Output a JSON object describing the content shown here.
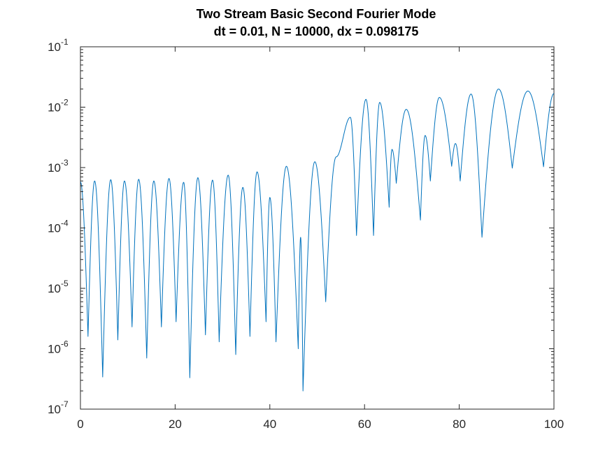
{
  "chart_data": {
    "type": "line",
    "title": "Two Stream Basic Second Fourier Mode",
    "subtitle": "dt = 0.01, N = 10000, dx = 0.098175",
    "xlabel": "",
    "ylabel": "",
    "xlim": [
      0,
      100
    ],
    "ylim": [
      1e-07,
      0.1
    ],
    "yscale": "log",
    "grid": false,
    "legend": "none",
    "x_ticks": [
      "0",
      "20",
      "40",
      "60",
      "80",
      "100"
    ],
    "y_ticks": [
      {
        "base": "10",
        "exp": "-7"
      },
      {
        "base": "10",
        "exp": "-6"
      },
      {
        "base": "10",
        "exp": "-5"
      },
      {
        "base": "10",
        "exp": "-4"
      },
      {
        "base": "10",
        "exp": "-3"
      },
      {
        "base": "10",
        "exp": "-2"
      },
      {
        "base": "10",
        "exp": "-1"
      }
    ],
    "series": [
      {
        "color": "#0072BD",
        "peaks": [
          [
            0,
            0.00058
          ],
          [
            3.0,
            0.0006
          ],
          [
            6.4,
            0.00063
          ],
          [
            9.3,
            0.0006
          ],
          [
            12.3,
            0.00064
          ],
          [
            15.5,
            0.0006
          ],
          [
            18.7,
            0.00066
          ],
          [
            21.8,
            0.00057
          ],
          [
            24.8,
            0.00068
          ],
          [
            27.9,
            0.00062
          ],
          [
            31.2,
            0.00075
          ],
          [
            34.3,
            0.00047
          ],
          [
            37.3,
            0.00085
          ],
          [
            40.0,
            0.00032
          ],
          [
            43.5,
            0.00105
          ],
          [
            46.5,
            7e-05
          ],
          [
            49.5,
            0.00125
          ],
          [
            54.0,
            0.0015
          ],
          [
            57.0,
            0.0068
          ],
          [
            60.3,
            0.0135
          ],
          [
            63.2,
            0.012
          ],
          [
            65.8,
            0.002
          ],
          [
            68.8,
            0.0092
          ],
          [
            72.8,
            0.0034
          ],
          [
            75.8,
            0.0145
          ],
          [
            79.2,
            0.0025
          ],
          [
            82.5,
            0.0165
          ],
          [
            88.3,
            0.02
          ],
          [
            94.5,
            0.0185
          ],
          [
            100,
            0.0168
          ]
        ],
        "dips": [
          [
            1.6,
            1.6e-06
          ],
          [
            4.7,
            3.4e-07
          ],
          [
            7.9,
            1.4e-06
          ],
          [
            10.9,
            2.3e-06
          ],
          [
            14.0,
            7e-07
          ],
          [
            17.1,
            2.3e-06
          ],
          [
            20.2,
            2.8e-06
          ],
          [
            23.1,
            3.3e-07
          ],
          [
            26.4,
            1.7e-06
          ],
          [
            29.3,
            1.3e-06
          ],
          [
            32.8,
            8e-07
          ],
          [
            35.8,
            1.6e-06
          ],
          [
            39.2,
            2.8e-06
          ],
          [
            41.3,
            1.3e-06
          ],
          [
            46.0,
            1e-06
          ],
          [
            47.0,
            2e-07
          ],
          [
            51.8,
            6e-06
          ],
          [
            58.3,
            7.5e-05
          ],
          [
            61.9,
            7.5e-05
          ],
          [
            65.2,
            0.00022
          ],
          [
            66.7,
            0.00055
          ],
          [
            71.8,
            0.000135
          ],
          [
            73.9,
            0.0006
          ],
          [
            78.4,
            0.00105
          ],
          [
            80.2,
            0.0006
          ],
          [
            84.8,
            7e-05
          ],
          [
            91.2,
            0.00098
          ],
          [
            97.8,
            0.00103
          ]
        ]
      }
    ]
  }
}
